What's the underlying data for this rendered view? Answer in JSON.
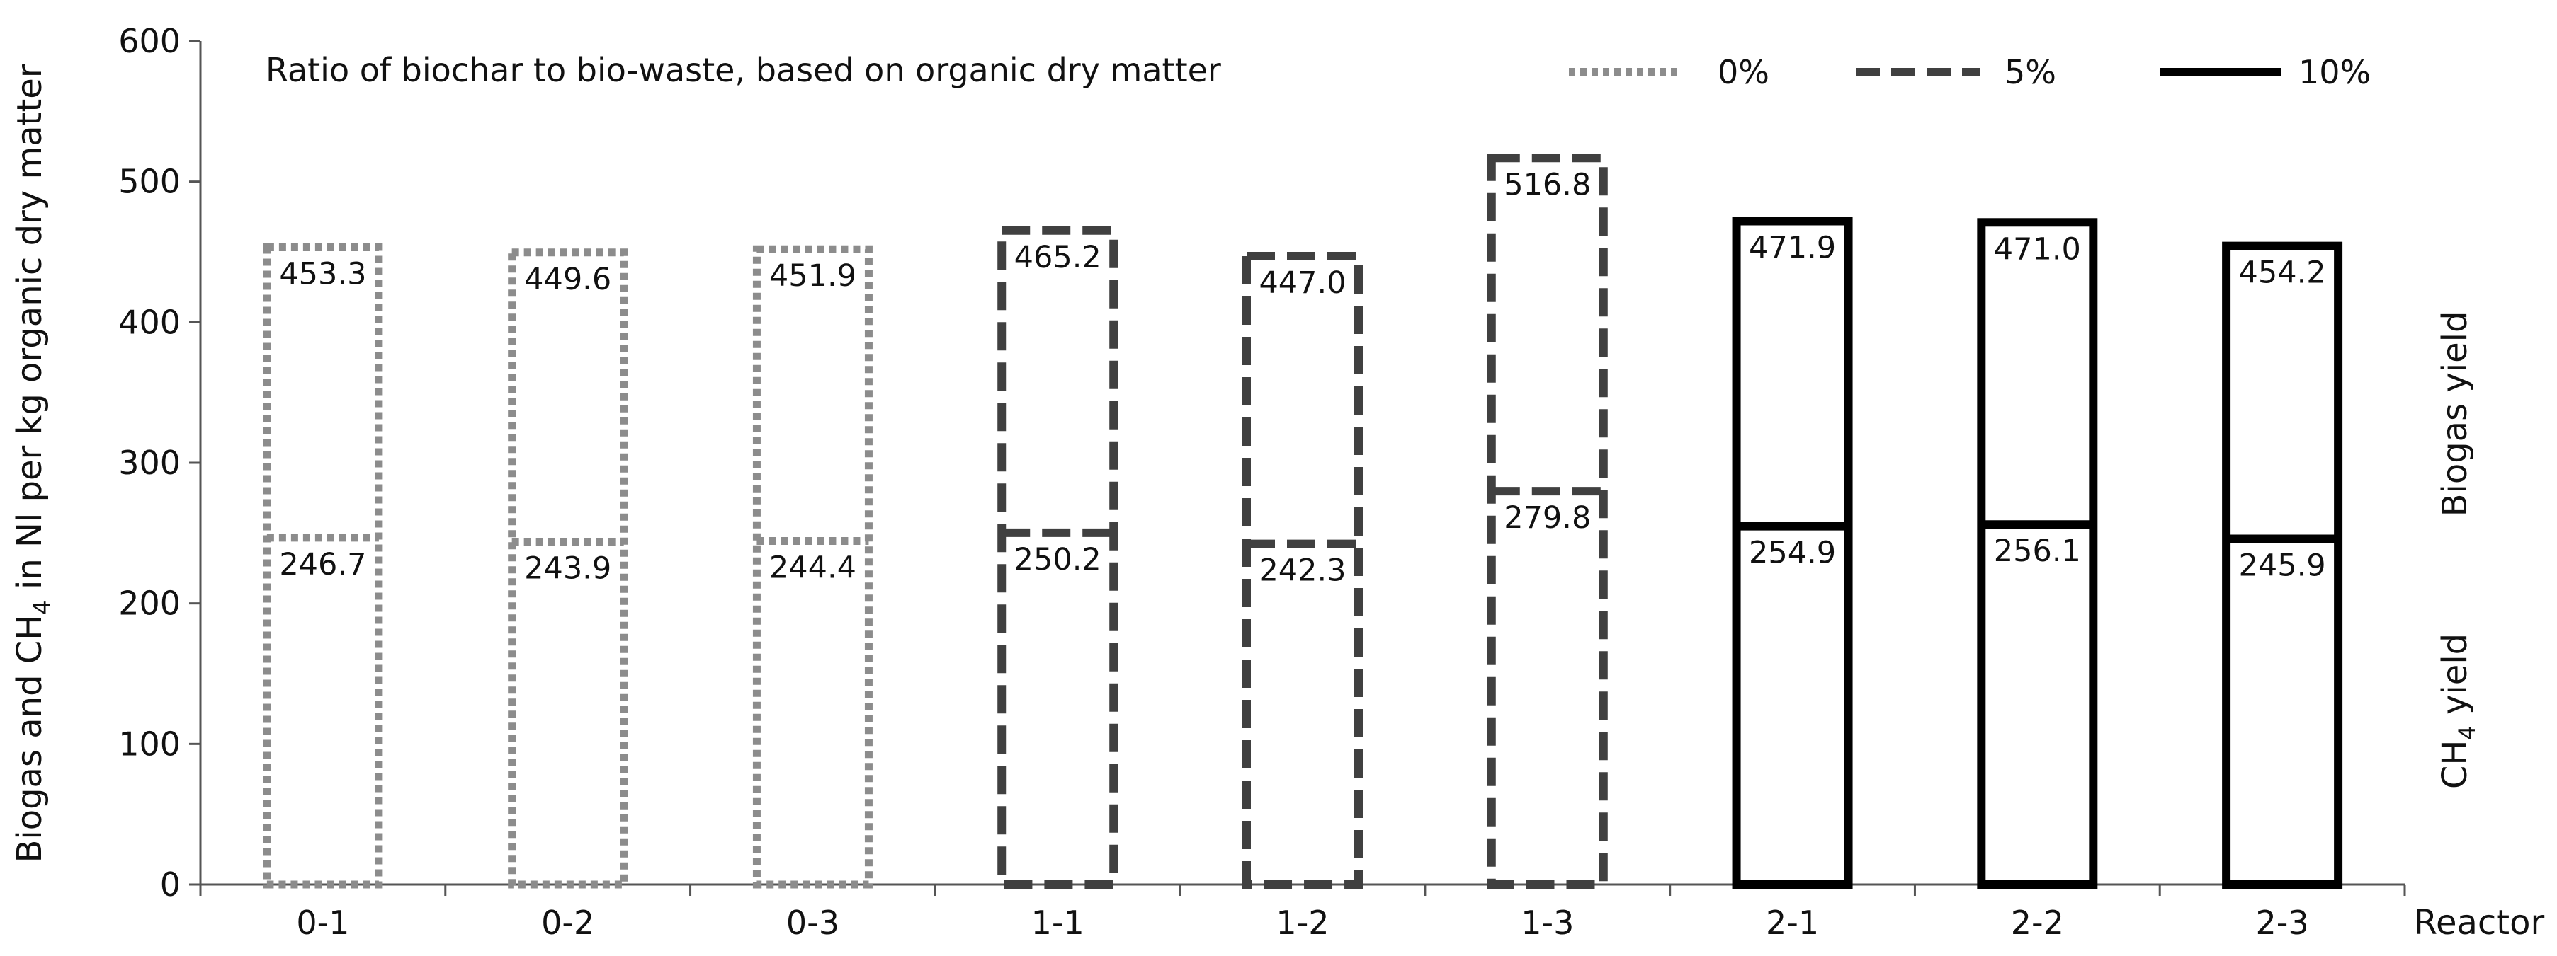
{
  "chart_data": {
    "type": "bar",
    "title": "Ratio of biochar to bio-waste, based on organic dry matter",
    "xlabel": "Reactor",
    "ylabel_main": "Biogas and CH",
    "ylabel_sub": "4",
    "ylabel_rest": " in Nl per kg organic dry matter",
    "ylim": [
      0,
      600
    ],
    "yticks": [
      "0",
      "100",
      "200",
      "300",
      "400",
      "500",
      "600"
    ],
    "grid": false,
    "legend_placement": "top",
    "categories": [
      "0-1",
      "0-2",
      "0-3",
      "1-1",
      "1-2",
      "1-3",
      "2-1",
      "2-2",
      "2-3"
    ],
    "series": [
      {
        "name": "0%",
        "style": "dotted",
        "color": "#8c8c8c",
        "categories": [
          "0-1",
          "0-2",
          "0-3"
        ],
        "biogas": [
          453.3,
          449.6,
          451.9
        ],
        "ch4": [
          246.7,
          243.9,
          244.4
        ]
      },
      {
        "name": "5%",
        "style": "dashed",
        "color": "#404040",
        "categories": [
          "1-1",
          "1-2",
          "1-3"
        ],
        "biogas": [
          465.2,
          447.0,
          516.8
        ],
        "ch4": [
          250.2,
          242.3,
          279.8
        ]
      },
      {
        "name": "10%",
        "style": "solid",
        "color": "#000000",
        "categories": [
          "2-1",
          "2-2",
          "2-3"
        ],
        "biogas": [
          471.9,
          471.0,
          454.2
        ],
        "ch4": [
          254.9,
          256.1,
          245.9
        ]
      }
    ],
    "biogas_labels": [
      "453.3",
      "449.6",
      "451.9",
      "465.2",
      "447.0",
      "516.8",
      "471.9",
      "471.0",
      "454.2"
    ],
    "ch4_labels": [
      "246.7",
      "243.9",
      "244.4",
      "250.2",
      "242.3",
      "279.8",
      "254.9",
      "256.1",
      "245.9"
    ],
    "side_labels": {
      "biogas": "Biogas yield",
      "ch4_main": "CH",
      "ch4_sub": "4",
      "ch4_rest": " yield"
    }
  }
}
